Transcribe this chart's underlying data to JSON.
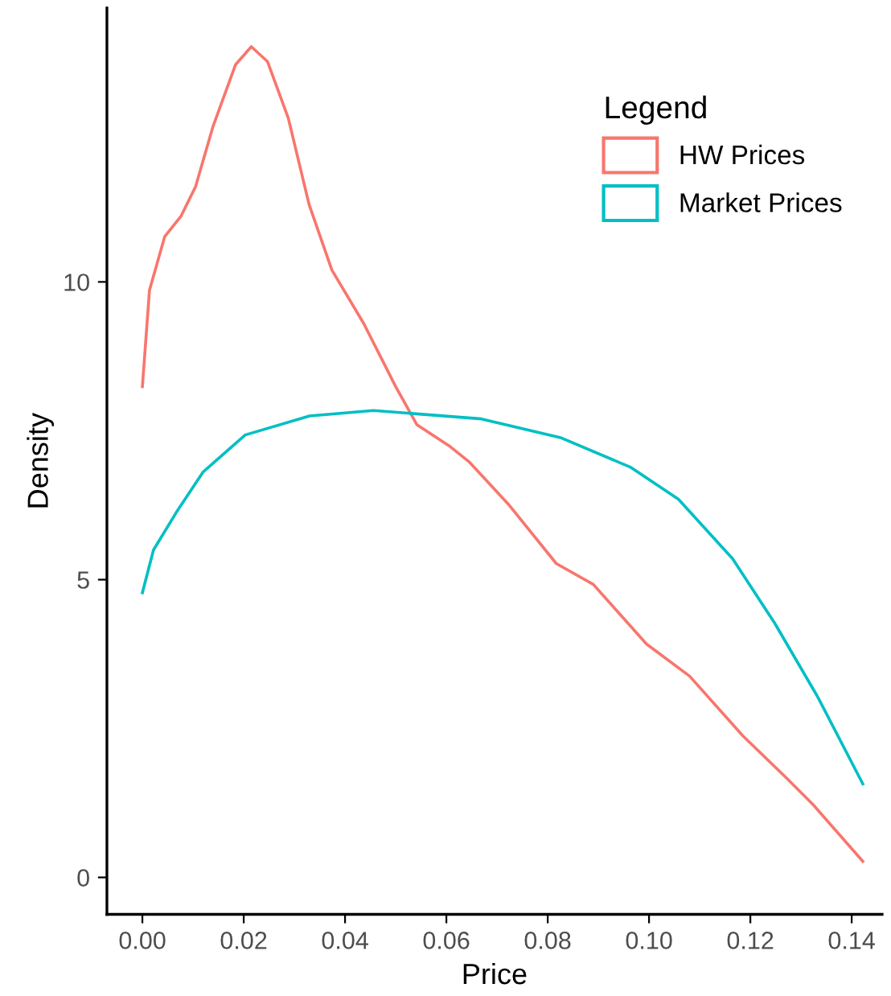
{
  "chart_data": {
    "type": "line",
    "xlabel": "Price",
    "ylabel": "Density",
    "legend_title": "Legend",
    "legend": "top right",
    "grid": false,
    "marker": "none",
    "line_style": "solid",
    "xlim": [
      -0.007,
      0.146
    ],
    "ylim": [
      -0.62,
      14.6
    ],
    "xticks": [
      {
        "value": 0,
        "label": "0.00"
      },
      {
        "value": 0.02,
        "label": "0.02"
      },
      {
        "value": 0.04,
        "label": "0.04"
      },
      {
        "value": 0.06,
        "label": "0.06"
      },
      {
        "value": 0.08,
        "label": "0.08"
      },
      {
        "value": 0.1,
        "label": "0.10"
      },
      {
        "value": 0.12,
        "label": "0.12"
      },
      {
        "value": 0.14,
        "label": "0.14"
      }
    ],
    "yticks": [
      0,
      5,
      10
    ],
    "series": [
      {
        "name": "HW Prices",
        "color": "#f8766d",
        "x": [
          0,
          0.0014,
          0.0044,
          0.0076,
          0.0105,
          0.0139,
          0.0184,
          0.0215,
          0.0247,
          0.0288,
          0.0329,
          0.0374,
          0.0437,
          0.05,
          0.0542,
          0.0605,
          0.0646,
          0.0722,
          0.0817,
          0.089,
          0.0995,
          0.108,
          0.1185,
          0.127,
          0.1324,
          0.1422
        ],
        "values": [
          8.24,
          9.86,
          10.76,
          11.1,
          11.6,
          12.6,
          13.65,
          13.95,
          13.7,
          12.75,
          11.3,
          10.2,
          9.3,
          8.24,
          7.6,
          7.25,
          6.97,
          6.27,
          5.27,
          4.92,
          3.92,
          3.38,
          2.38,
          1.68,
          1.22,
          0.27
        ]
      },
      {
        "name": "Market Prices",
        "color": "#00bfc4",
        "x": [
          0,
          0.0022,
          0.0067,
          0.012,
          0.0203,
          0.033,
          0.0456,
          0.0669,
          0.0827,
          0.0963,
          0.1058,
          0.1165,
          0.1248,
          0.1333,
          0.1422
        ],
        "values": [
          4.78,
          5.5,
          6.13,
          6.81,
          7.43,
          7.75,
          7.84,
          7.7,
          7.38,
          6.89,
          6.35,
          5.35,
          4.27,
          3.03,
          1.57
        ]
      }
    ]
  }
}
